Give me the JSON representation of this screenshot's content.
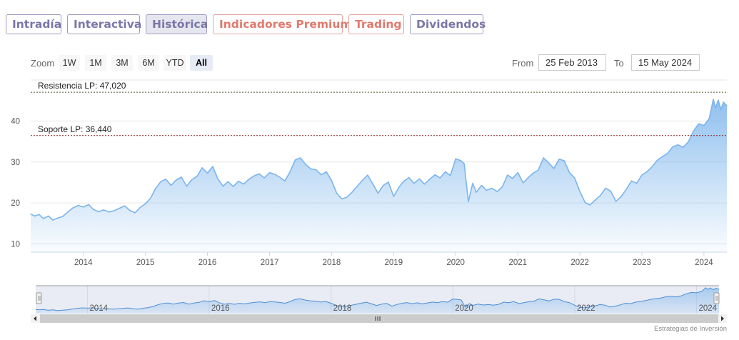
{
  "tabs": [
    {
      "label": "Intradía",
      "active": false
    },
    {
      "label": "Interactiva",
      "active": false
    },
    {
      "label": "Histórica",
      "active": true
    },
    {
      "label": "Indicadores Premium",
      "active": false
    },
    {
      "label": "Trading",
      "active": false
    },
    {
      "label": "Dividendos",
      "active": false
    }
  ],
  "zoom": {
    "label": "Zoom",
    "buttons": [
      "1W",
      "1M",
      "3M",
      "6M",
      "YTD",
      "All"
    ],
    "active": "All"
  },
  "range": {
    "from_label": "From",
    "from_value": "25 Feb 2013",
    "to_label": "To",
    "to_value": "15 May 2024"
  },
  "credit": "Estrategias de Inversión",
  "chart_data": {
    "type": "area",
    "x_start": "2013-02-25",
    "x_end": "2024-05-15",
    "ylim": [
      8,
      50
    ],
    "y_ticks": [
      "10",
      "20",
      "30",
      "40"
    ],
    "x_ticks": [
      "2014",
      "2015",
      "2016",
      "2017",
      "2018",
      "2019",
      "2020",
      "2021",
      "2022",
      "2023",
      "2024"
    ],
    "grid": true,
    "series_color": "#7cb5ec",
    "points": [
      [
        "2013-02-25",
        17.3
      ],
      [
        "2013-03-20",
        16.8
      ],
      [
        "2013-04-15",
        17.2
      ],
      [
        "2013-05-10",
        16.2
      ],
      [
        "2013-06-10",
        16.8
      ],
      [
        "2013-07-05",
        15.8
      ],
      [
        "2013-08-01",
        16.3
      ],
      [
        "2013-09-01",
        16.7
      ],
      [
        "2013-10-01",
        17.8
      ],
      [
        "2013-11-01",
        18.8
      ],
      [
        "2013-12-01",
        19.4
      ],
      [
        "2014-01-01",
        19.0
      ],
      [
        "2014-02-01",
        19.6
      ],
      [
        "2014-03-01",
        18.4
      ],
      [
        "2014-04-01",
        17.9
      ],
      [
        "2014-05-01",
        18.3
      ],
      [
        "2014-06-01",
        17.8
      ],
      [
        "2014-07-01",
        18.1
      ],
      [
        "2014-08-01",
        18.7
      ],
      [
        "2014-09-01",
        19.3
      ],
      [
        "2014-10-01",
        18.2
      ],
      [
        "2014-11-01",
        17.6
      ],
      [
        "2014-12-01",
        18.9
      ],
      [
        "2015-01-01",
        19.8
      ],
      [
        "2015-02-01",
        21.2
      ],
      [
        "2015-03-01",
        23.5
      ],
      [
        "2015-04-01",
        25.2
      ],
      [
        "2015-05-01",
        25.8
      ],
      [
        "2015-06-01",
        24.3
      ],
      [
        "2015-07-01",
        25.6
      ],
      [
        "2015-08-01",
        26.3
      ],
      [
        "2015-09-01",
        24.1
      ],
      [
        "2015-10-01",
        25.7
      ],
      [
        "2015-11-01",
        26.5
      ],
      [
        "2015-12-01",
        28.6
      ],
      [
        "2016-01-01",
        27.3
      ],
      [
        "2016-02-01",
        28.9
      ],
      [
        "2016-03-01",
        26.0
      ],
      [
        "2016-04-01",
        24.1
      ],
      [
        "2016-05-01",
        25.2
      ],
      [
        "2016-06-01",
        24.0
      ],
      [
        "2016-07-01",
        25.3
      ],
      [
        "2016-08-01",
        24.6
      ],
      [
        "2016-09-01",
        25.8
      ],
      [
        "2016-10-01",
        26.6
      ],
      [
        "2016-11-01",
        27.1
      ],
      [
        "2016-12-01",
        26.1
      ],
      [
        "2017-01-01",
        27.4
      ],
      [
        "2017-02-01",
        27.0
      ],
      [
        "2017-03-01",
        26.3
      ],
      [
        "2017-04-01",
        25.4
      ],
      [
        "2017-05-01",
        27.6
      ],
      [
        "2017-06-01",
        30.5
      ],
      [
        "2017-07-01",
        31.0
      ],
      [
        "2017-08-01",
        29.4
      ],
      [
        "2017-09-01",
        28.3
      ],
      [
        "2017-10-01",
        28.1
      ],
      [
        "2017-11-01",
        26.9
      ],
      [
        "2017-12-01",
        27.6
      ],
      [
        "2018-01-01",
        25.4
      ],
      [
        "2018-02-01",
        22.3
      ],
      [
        "2018-03-01",
        21.0
      ],
      [
        "2018-04-01",
        21.4
      ],
      [
        "2018-05-01",
        22.6
      ],
      [
        "2018-06-01",
        24.1
      ],
      [
        "2018-07-01",
        25.5
      ],
      [
        "2018-08-01",
        26.8
      ],
      [
        "2018-09-01",
        24.6
      ],
      [
        "2018-10-01",
        22.4
      ],
      [
        "2018-11-01",
        24.3
      ],
      [
        "2018-12-01",
        25.1
      ],
      [
        "2019-01-01",
        21.6
      ],
      [
        "2019-02-01",
        23.8
      ],
      [
        "2019-03-01",
        25.3
      ],
      [
        "2019-04-01",
        26.2
      ],
      [
        "2019-05-01",
        24.8
      ],
      [
        "2019-06-01",
        25.9
      ],
      [
        "2019-07-01",
        24.6
      ],
      [
        "2019-08-01",
        25.8
      ],
      [
        "2019-09-01",
        26.9
      ],
      [
        "2019-10-01",
        26.1
      ],
      [
        "2019-11-01",
        27.6
      ],
      [
        "2019-12-01",
        26.7
      ],
      [
        "2020-01-01",
        30.8
      ],
      [
        "2020-02-01",
        30.3
      ],
      [
        "2020-02-20",
        29.6
      ],
      [
        "2020-03-16",
        20.3
      ],
      [
        "2020-04-10",
        24.8
      ],
      [
        "2020-05-01",
        22.6
      ],
      [
        "2020-06-01",
        24.3
      ],
      [
        "2020-07-01",
        23.1
      ],
      [
        "2020-08-01",
        23.6
      ],
      [
        "2020-09-01",
        22.8
      ],
      [
        "2020-10-01",
        23.9
      ],
      [
        "2020-11-01",
        26.8
      ],
      [
        "2020-12-01",
        26.0
      ],
      [
        "2021-01-01",
        27.4
      ],
      [
        "2021-02-01",
        24.9
      ],
      [
        "2021-03-01",
        26.1
      ],
      [
        "2021-04-01",
        27.3
      ],
      [
        "2021-05-01",
        28.0
      ],
      [
        "2021-06-01",
        31.0
      ],
      [
        "2021-07-01",
        29.8
      ],
      [
        "2021-08-01",
        28.4
      ],
      [
        "2021-09-01",
        30.7
      ],
      [
        "2021-10-01",
        30.3
      ],
      [
        "2021-11-01",
        27.4
      ],
      [
        "2021-12-01",
        26.1
      ],
      [
        "2022-01-01",
        22.8
      ],
      [
        "2022-02-01",
        20.1
      ],
      [
        "2022-03-01",
        19.5
      ],
      [
        "2022-04-01",
        20.7
      ],
      [
        "2022-05-01",
        21.8
      ],
      [
        "2022-06-01",
        23.6
      ],
      [
        "2022-07-01",
        22.9
      ],
      [
        "2022-08-01",
        20.4
      ],
      [
        "2022-09-01",
        21.6
      ],
      [
        "2022-10-01",
        23.3
      ],
      [
        "2022-11-01",
        25.4
      ],
      [
        "2022-12-01",
        24.8
      ],
      [
        "2023-01-01",
        26.8
      ],
      [
        "2023-02-01",
        27.7
      ],
      [
        "2023-03-01",
        28.8
      ],
      [
        "2023-04-01",
        30.4
      ],
      [
        "2023-05-01",
        31.3
      ],
      [
        "2023-06-01",
        32.1
      ],
      [
        "2023-07-01",
        33.7
      ],
      [
        "2023-08-01",
        34.2
      ],
      [
        "2023-09-01",
        33.6
      ],
      [
        "2023-10-01",
        34.9
      ],
      [
        "2023-11-01",
        37.6
      ],
      [
        "2023-12-01",
        39.3
      ],
      [
        "2024-01-01",
        38.9
      ],
      [
        "2024-02-01",
        40.6
      ],
      [
        "2024-02-25",
        45.3
      ],
      [
        "2024-03-10",
        43.2
      ],
      [
        "2024-03-25",
        45.1
      ],
      [
        "2024-04-10",
        42.8
      ],
      [
        "2024-04-25",
        44.6
      ],
      [
        "2024-05-15",
        43.7
      ]
    ],
    "annotations": [
      {
        "label": "Resistencia LP: 47,020",
        "value": 47.02,
        "color": "#4a5a2a"
      },
      {
        "label": "Soporte LP: 36,440",
        "value": 36.44,
        "color": "#8b1a1a"
      }
    ],
    "navigator": {
      "x_ticks": [
        "2014",
        "2016",
        "2018",
        "2020",
        "2022",
        "2024"
      ],
      "ylim": [
        12,
        48
      ]
    }
  }
}
